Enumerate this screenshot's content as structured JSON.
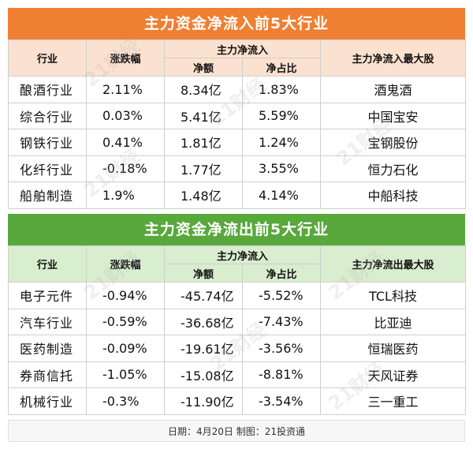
{
  "inflow": {
    "title": "主力资金净流入前5大行业",
    "headers": {
      "industry": "行业",
      "change": "涨跌幅",
      "group": "主力净流入",
      "amount": "净额",
      "ratio": "净占比",
      "top_stock": "主力净流入最大股"
    },
    "rows": [
      {
        "industry": "酿酒行业",
        "change": "2.11%",
        "amount": "8.34亿",
        "ratio": "1.83%",
        "stock": "酒鬼酒"
      },
      {
        "industry": "综合行业",
        "change": "0.03%",
        "amount": "5.41亿",
        "ratio": "5.59%",
        "stock": "中国宝安"
      },
      {
        "industry": "钢铁行业",
        "change": "0.41%",
        "amount": "1.81亿",
        "ratio": "1.24%",
        "stock": "宝钢股份"
      },
      {
        "industry": "化纤行业",
        "change": "-0.18%",
        "amount": "1.77亿",
        "ratio": "3.55%",
        "stock": "恒力石化"
      },
      {
        "industry": "船舶制造",
        "change": "1.9%",
        "amount": "1.48亿",
        "ratio": "4.14%",
        "stock": "中船科技"
      }
    ]
  },
  "outflow": {
    "title": "主力资金净流出前5大行业",
    "headers": {
      "industry": "行业",
      "change": "涨跌幅",
      "group": "主力净流入",
      "amount": "净额",
      "ratio": "净占比",
      "top_stock": "主力净流出最大股"
    },
    "rows": [
      {
        "industry": "电子元件",
        "change": "-0.94%",
        "amount": "-45.74亿",
        "ratio": "-5.52%",
        "stock": "TCL科技"
      },
      {
        "industry": "汽车行业",
        "change": "-0.59%",
        "amount": "-36.68亿",
        "ratio": "-7.43%",
        "stock": "比亚迪"
      },
      {
        "industry": "医药制造",
        "change": "-0.09%",
        "amount": "-19.61亿",
        "ratio": "-3.56%",
        "stock": "恒瑞医药"
      },
      {
        "industry": "券商信托",
        "change": "-1.05%",
        "amount": "-15.08亿",
        "ratio": "-8.81%",
        "stock": "天风证券"
      },
      {
        "industry": "机械行业",
        "change": "-0.3%",
        "amount": "-11.90亿",
        "ratio": "-3.54%",
        "stock": "三一重工"
      }
    ]
  },
  "footer": "日期：4月20日 制图：21投资通",
  "watermark": "21财经",
  "colors": {
    "inflow_title": "#ef7f32",
    "inflow_header": "#fbe1cf",
    "outflow_title": "#58a83c",
    "outflow_header": "#d9edcf"
  }
}
